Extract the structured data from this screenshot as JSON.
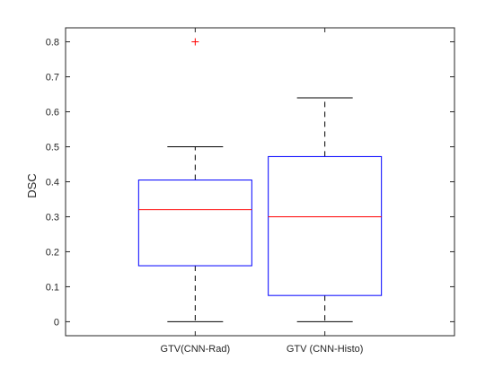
{
  "chart_data": {
    "type": "boxplot",
    "ylabel": "DSC",
    "ylim": [
      -0.04,
      0.84
    ],
    "yticks": [
      "0",
      "0.1",
      "0.2",
      "0.3",
      "0.4",
      "0.5",
      "0.6",
      "0.7",
      "0.8"
    ],
    "yticks_values": [
      0,
      0.1,
      0.2,
      0.3,
      0.4,
      0.5,
      0.6,
      0.7,
      0.8
    ],
    "categories": [
      "GTV(CNN-Rad)",
      "GTV (CNN-Histo)"
    ],
    "boxes": [
      {
        "label": "GTV(CNN-Rad)",
        "min": 0.0,
        "q1": 0.16,
        "median": 0.32,
        "q3": 0.405,
        "max": 0.5,
        "outliers": [
          0.8
        ]
      },
      {
        "label": "GTV (CNN-Histo)",
        "min": 0.0,
        "q1": 0.075,
        "median": 0.3,
        "q3": 0.472,
        "max": 0.64,
        "outliers": []
      }
    ],
    "grid": false,
    "colors": {
      "box": "#0000ff",
      "median": "#ff0000",
      "whisker": "#000000",
      "outlier": "#ff0000",
      "axis": "#262626"
    }
  }
}
